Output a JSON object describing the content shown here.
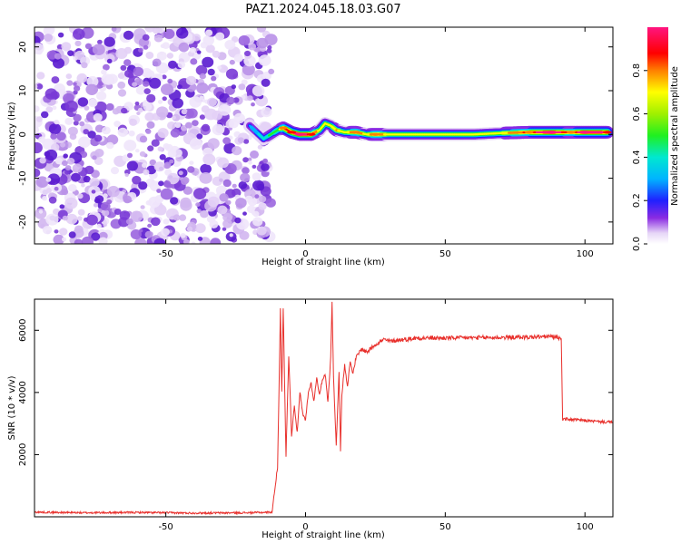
{
  "title": "PAZ1.2024.045.18.03.G07",
  "colors": {
    "snr_line": "#e8302c",
    "axes": "#000000"
  },
  "chart_data": [
    {
      "type": "heatmap",
      "title": "PAZ1.2024.045.18.03.G07",
      "xlabel": "Height of straight line (km)",
      "ylabel": "Frequency (Hz)",
      "xlim": [
        -97,
        110
      ],
      "ylim": [
        -25,
        24.5
      ],
      "xticks": [
        -50,
        0,
        50,
        100
      ],
      "yticks": [
        -20,
        -10,
        0,
        10,
        20
      ],
      "colorbar": {
        "label": "Normalized spectral amplitude",
        "ticks": [
          "0.0",
          "0.2",
          "0.4",
          "0.6",
          "0.8"
        ],
        "range": [
          0,
          1
        ],
        "colormap": "white-purple-blue-cyan-green-yellow-red-pink"
      },
      "noise_region_x": [
        -97,
        -12
      ],
      "signal_ridge": [
        {
          "x": -20,
          "freq": 2.0,
          "amp": 0.2
        },
        {
          "x": -15,
          "freq": -1.0,
          "amp": 0.3
        },
        {
          "x": -10,
          "freq": 1.0,
          "amp": 0.45
        },
        {
          "x": -8,
          "freq": 1.5,
          "amp": 0.8
        },
        {
          "x": -5,
          "freq": 0.5,
          "amp": 0.85
        },
        {
          "x": -2,
          "freq": 0.0,
          "amp": 0.9
        },
        {
          "x": 2,
          "freq": 0.0,
          "amp": 0.85
        },
        {
          "x": 5,
          "freq": 1.0,
          "amp": 0.6
        },
        {
          "x": 7,
          "freq": 2.5,
          "amp": 0.55
        },
        {
          "x": 9,
          "freq": 2.0,
          "amp": 0.6
        },
        {
          "x": 11,
          "freq": 1.0,
          "amp": 0.65
        },
        {
          "x": 14,
          "freq": 0.5,
          "amp": 0.55
        },
        {
          "x": 18,
          "freq": 0.5,
          "amp": 0.75
        },
        {
          "x": 22,
          "freq": 0.0,
          "amp": 0.55
        },
        {
          "x": 25,
          "freq": 0.0,
          "amp": 0.8
        },
        {
          "x": 30,
          "freq": 0.0,
          "amp": 0.55
        },
        {
          "x": 40,
          "freq": 0.0,
          "amp": 0.55
        },
        {
          "x": 50,
          "freq": 0.0,
          "amp": 0.55
        },
        {
          "x": 60,
          "freq": 0.0,
          "amp": 0.55
        },
        {
          "x": 70,
          "freq": 0.3,
          "amp": 0.6
        },
        {
          "x": 80,
          "freq": 0.5,
          "amp": 0.8
        },
        {
          "x": 88,
          "freq": 0.5,
          "amp": 0.9
        },
        {
          "x": 95,
          "freq": 0.5,
          "amp": 0.75
        },
        {
          "x": 100,
          "freq": 0.5,
          "amp": 0.92
        },
        {
          "x": 108,
          "freq": 0.5,
          "amp": 0.85
        }
      ]
    },
    {
      "type": "line",
      "xlabel": "Height of straight line (km)",
      "ylabel": "SNR (10 * v/v)",
      "xlim": [
        -97,
        110
      ],
      "ylim": [
        0,
        7000
      ],
      "xticks": [
        -50,
        0,
        50,
        100
      ],
      "yticks": [
        2000,
        4000,
        6000
      ],
      "series": [
        {
          "x": [
            -97,
            -80,
            -60,
            -40,
            -20,
            -12,
            -10,
            -9,
            -8.5,
            -8,
            -7,
            -6,
            -5,
            -4,
            -3,
            -2,
            -1,
            0,
            1,
            2,
            3,
            4,
            5,
            6,
            7,
            8,
            9,
            9.5,
            10,
            11,
            12,
            12.5,
            13,
            14,
            15,
            16,
            17,
            18,
            20,
            22,
            25,
            28,
            30,
            35,
            40,
            50,
            60,
            70,
            80,
            88,
            91.5,
            92,
            95,
            100,
            105,
            110
          ],
          "y": [
            150,
            130,
            140,
            120,
            130,
            150,
            1600,
            6700,
            4000,
            6750,
            2000,
            5200,
            2600,
            3600,
            2700,
            4000,
            3300,
            3100,
            4000,
            4300,
            3700,
            4500,
            3900,
            4400,
            4600,
            3700,
            5100,
            6950,
            4500,
            2300,
            4700,
            2200,
            3900,
            4900,
            4200,
            5000,
            4600,
            5100,
            5400,
            5300,
            5550,
            5700,
            5650,
            5700,
            5750,
            5750,
            5760,
            5770,
            5780,
            5800,
            5750,
            3150,
            3130,
            3100,
            3060,
            3040
          ]
        }
      ]
    }
  ]
}
